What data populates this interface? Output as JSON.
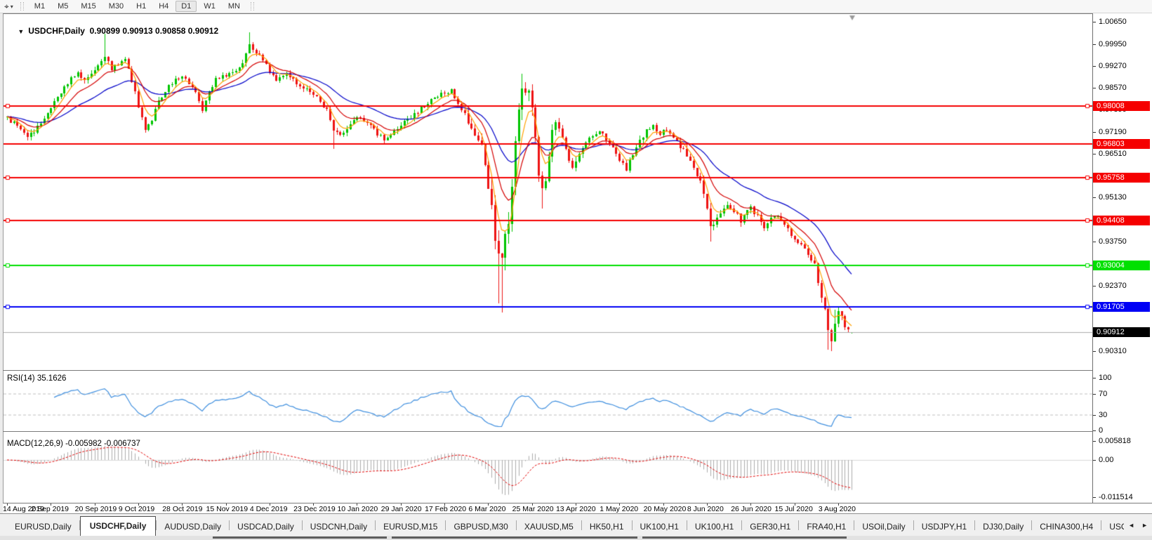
{
  "icons": {
    "crosshair": "⌖",
    "caret": "▾",
    "collapse": "▼",
    "tab_left": "◄",
    "tab_right": "►"
  },
  "toolbar": {
    "timeframes": [
      "M1",
      "M5",
      "M15",
      "M30",
      "H1",
      "H4",
      "D1",
      "W1",
      "MN"
    ],
    "active_timeframe": "D1"
  },
  "chart": {
    "symbol_label": "USDCHF,Daily",
    "ohlc_text": "0.90899 0.90913 0.90858 0.90912"
  },
  "rsi": {
    "label": "RSI(14) 35.1626",
    "axis_ticks": [
      100,
      70,
      30,
      0
    ],
    "levels": [
      70,
      30
    ],
    "line_color": "#3E8EDE"
  },
  "macd": {
    "label": "MACD(12,26,9) -0.005982 -0.006737",
    "axis_ticks": [
      {
        "label": "0.005818",
        "value": 0.005818
      },
      {
        "label": "0.00",
        "value": 0
      },
      {
        "label": "-0.011514",
        "value": -0.011514
      }
    ],
    "histogram_color": "#ACACAC",
    "signal_color": "#E00000"
  },
  "date_axis": {
    "labels": [
      "14 Aug 2019",
      "2 Sep 2019",
      "20 Sep 2019",
      "9 Oct 2019",
      "28 Oct 2019",
      "15 Nov 2019",
      "4 Dec 2019",
      "23 Dec 2019",
      "10 Jan 2020",
      "29 Jan 2020",
      "17 Feb 2020",
      "6 Mar 2020",
      "25 Mar 2020",
      "13 Apr 2020",
      "1 May 2020",
      "20 May 2020",
      "8 Jun 2020",
      "26 Jun 2020",
      "15 Jul 2020",
      "3 Aug 2020"
    ]
  },
  "tabs": {
    "items": [
      "EURUSD,Daily",
      "USDCHF,Daily",
      "AUDUSD,Daily",
      "USDCAD,Daily",
      "USDCNH,Daily",
      "EURUSD,M15",
      "GBPUSD,M30",
      "XAUUSD,M5",
      "HK50,H1",
      "UK100,H1",
      "UK100,H1",
      "GER30,H1",
      "FRA40,H1",
      "USOil,Daily",
      "USDJPY,H1",
      "DJ30,Daily",
      "CHINA300,H4",
      "USOil,D"
    ],
    "active_index": 1
  },
  "chart_data": {
    "type": "candlestick",
    "symbol": "USDCHF",
    "period": "Daily",
    "bars": 252,
    "current_ohlc": {
      "open": 0.90899,
      "high": 0.90913,
      "low": 0.90858,
      "close": 0.90912
    },
    "y_axis_ticks": [
      "1.00650",
      "0.99950",
      "0.99270",
      "0.98570",
      "0.97890",
      "0.97190",
      "0.96510",
      "0.95130",
      "0.93750",
      "0.92370",
      "0.90310"
    ],
    "horizontal_levels": [
      {
        "price": 0.98008,
        "label": "0.98008",
        "color": "#F50000",
        "selected": true
      },
      {
        "price": 0.96803,
        "label": "0.96803",
        "color": "#F50000",
        "selected": false
      },
      {
        "price": 0.95758,
        "label": "0.95758",
        "color": "#F50000",
        "selected": true
      },
      {
        "price": 0.94408,
        "label": "0.94408",
        "color": "#F50000",
        "selected": true
      },
      {
        "price": 0.93004,
        "label": "0.93004",
        "color": "#00E000",
        "selected": true
      },
      {
        "price": 0.91705,
        "label": "0.91705",
        "color": "#0000F5",
        "selected": true
      }
    ],
    "current_price_label": {
      "price": 0.90912,
      "label": "0.90912",
      "bg": "#000000"
    },
    "up_color": "#00C400",
    "down_color": "#EE1212",
    "moving_averages": [
      {
        "period": 30,
        "color": "#0000C8"
      },
      {
        "period": 12,
        "color": "#D40000"
      },
      {
        "period": 5,
        "color": "#FFA000"
      }
    ],
    "close_path": [
      [
        0,
        0.9762
      ],
      [
        2,
        0.9745
      ],
      [
        4,
        0.9722
      ],
      [
        6,
        0.9708
      ],
      [
        8,
        0.9722
      ],
      [
        10,
        0.9745
      ],
      [
        13,
        0.9792
      ],
      [
        16,
        0.9845
      ],
      [
        19,
        0.9885
      ],
      [
        21,
        0.9902
      ],
      [
        23,
        0.9878
      ],
      [
        25,
        0.9896
      ],
      [
        27,
        0.9924
      ],
      [
        29,
        0.9956
      ],
      [
        31,
        0.9915
      ],
      [
        33,
        0.9932
      ],
      [
        35,
        0.9944
      ],
      [
        37,
        0.988
      ],
      [
        39,
        0.9802
      ],
      [
        41,
        0.9722
      ],
      [
        43,
        0.9758
      ],
      [
        45,
        0.9812
      ],
      [
        47,
        0.985
      ],
      [
        50,
        0.9882
      ],
      [
        52,
        0.9896
      ],
      [
        54,
        0.9876
      ],
      [
        56,
        0.9846
      ],
      [
        58,
        0.9792
      ],
      [
        60,
        0.9845
      ],
      [
        62,
        0.9885
      ],
      [
        65,
        0.9896
      ],
      [
        68,
        0.9912
      ],
      [
        70,
        0.994
      ],
      [
        72,
        0.9994
      ],
      [
        74,
        0.9966
      ],
      [
        76,
        0.9944
      ],
      [
        78,
        0.9906
      ],
      [
        80,
        0.9882
      ],
      [
        83,
        0.9898
      ],
      [
        86,
        0.9872
      ],
      [
        89,
        0.985
      ],
      [
        92,
        0.9824
      ],
      [
        95,
        0.9788
      ],
      [
        97,
        0.9722
      ],
      [
        99,
        0.9706
      ],
      [
        101,
        0.9734
      ],
      [
        104,
        0.9764
      ],
      [
        107,
        0.9744
      ],
      [
        110,
        0.9714
      ],
      [
        112,
        0.9694
      ],
      [
        115,
        0.972
      ],
      [
        118,
        0.9748
      ],
      [
        121,
        0.9775
      ],
      [
        124,
        0.9802
      ],
      [
        127,
        0.9824
      ],
      [
        130,
        0.9842
      ],
      [
        132,
        0.9851
      ],
      [
        134,
        0.9812
      ],
      [
        136,
        0.9772
      ],
      [
        138,
        0.9734
      ],
      [
        140,
        0.97
      ],
      [
        141,
        0.9664
      ],
      [
        142,
        0.9618
      ],
      [
        143,
        0.9556
      ],
      [
        144,
        0.9478
      ],
      [
        145,
        0.9398
      ],
      [
        146,
        0.9338
      ],
      [
        147,
        0.9312
      ],
      [
        148,
        0.9382
      ],
      [
        149,
        0.9454
      ],
      [
        150,
        0.9564
      ],
      [
        151,
        0.9684
      ],
      [
        152,
        0.9802
      ],
      [
        153,
        0.9864
      ],
      [
        154,
        0.9822
      ],
      [
        155,
        0.9856
      ],
      [
        156,
        0.9788
      ],
      [
        157,
        0.9688
      ],
      [
        158,
        0.9588
      ],
      [
        159,
        0.9528
      ],
      [
        160,
        0.957
      ],
      [
        161,
        0.9652
      ],
      [
        162,
        0.9714
      ],
      [
        163,
        0.9758
      ],
      [
        164,
        0.973
      ],
      [
        165,
        0.97
      ],
      [
        166,
        0.9668
      ],
      [
        167,
        0.9638
      ],
      [
        168,
        0.9612
      ],
      [
        170,
        0.9648
      ],
      [
        172,
        0.9684
      ],
      [
        174,
        0.9712
      ],
      [
        176,
        0.9728
      ],
      [
        178,
        0.97
      ],
      [
        180,
        0.9668
      ],
      [
        182,
        0.9636
      ],
      [
        184,
        0.9604
      ],
      [
        186,
        0.9648
      ],
      [
        188,
        0.9692
      ],
      [
        190,
        0.9722
      ],
      [
        192,
        0.9736
      ],
      [
        194,
        0.9714
      ],
      [
        196,
        0.9722
      ],
      [
        198,
        0.9702
      ],
      [
        200,
        0.9676
      ],
      [
        202,
        0.9645
      ],
      [
        204,
        0.9608
      ],
      [
        206,
        0.9562
      ],
      [
        207,
        0.9522
      ],
      [
        208,
        0.9472
      ],
      [
        209,
        0.9415
      ],
      [
        210,
        0.9432
      ],
      [
        212,
        0.9465
      ],
      [
        214,
        0.9492
      ],
      [
        216,
        0.947
      ],
      [
        218,
        0.9442
      ],
      [
        220,
        0.9468
      ],
      [
        221,
        0.9482
      ],
      [
        223,
        0.9452
      ],
      [
        225,
        0.9422
      ],
      [
        227,
        0.9442
      ],
      [
        229,
        0.9462
      ],
      [
        231,
        0.9428
      ],
      [
        233,
        0.9398
      ],
      [
        234,
        0.9385
      ],
      [
        236,
        0.9362
      ],
      [
        238,
        0.9338
      ],
      [
        240,
        0.9302
      ],
      [
        241,
        0.9248
      ],
      [
        242,
        0.9198
      ],
      [
        243,
        0.9152
      ],
      [
        244,
        0.9092
      ],
      [
        245,
        0.9062
      ],
      [
        246,
        0.9122
      ],
      [
        247,
        0.9152
      ],
      [
        248,
        0.9138
      ],
      [
        249,
        0.9112
      ],
      [
        250,
        0.9094
      ],
      [
        251,
        0.90912
      ]
    ],
    "volatility_path": [
      [
        0,
        0.0016
      ],
      [
        135,
        0.0016
      ],
      [
        140,
        0.0035
      ],
      [
        146,
        0.0058
      ],
      [
        152,
        0.0052
      ],
      [
        158,
        0.0038
      ],
      [
        164,
        0.0026
      ],
      [
        180,
        0.0017
      ],
      [
        204,
        0.002
      ],
      [
        209,
        0.0026
      ],
      [
        214,
        0.0018
      ],
      [
        238,
        0.0016
      ],
      [
        243,
        0.0026
      ],
      [
        247,
        0.0022
      ],
      [
        251,
        0.001
      ]
    ],
    "wick_overrides": [
      [
        29,
        "h",
        1.0027
      ],
      [
        72,
        "h",
        1.0033
      ],
      [
        97,
        "l",
        0.9665
      ],
      [
        146,
        "l",
        0.9182
      ],
      [
        147,
        "l",
        0.9152
      ],
      [
        153,
        "h",
        0.9901
      ],
      [
        159,
        "l",
        0.9479
      ],
      [
        209,
        "l",
        0.9374
      ],
      [
        244,
        "l",
        0.9036
      ],
      [
        245,
        "l",
        0.9032
      ],
      [
        246,
        "h",
        0.916
      ],
      [
        247,
        "h",
        0.9171
      ]
    ]
  }
}
